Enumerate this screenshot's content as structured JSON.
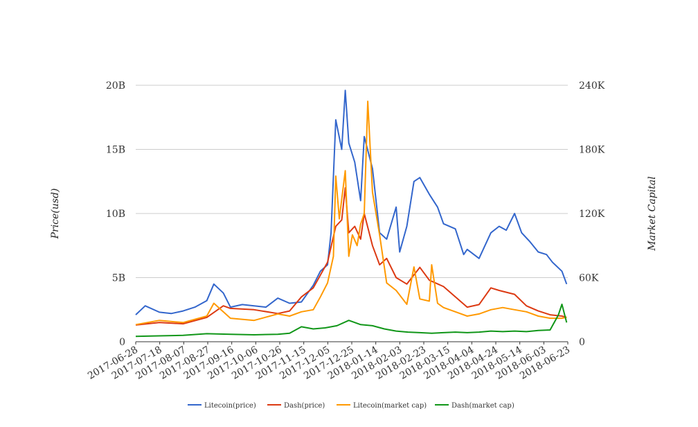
{
  "chart_data": {
    "type": "line",
    "title": "",
    "y_left": {
      "label": "Price(usd)",
      "ticks": [
        "0",
        "5B",
        "10B",
        "15B",
        "20B"
      ],
      "range": [
        0,
        20000000000
      ]
    },
    "y_right": {
      "label": "Market Capital",
      "ticks": [
        "0",
        "60K",
        "120K",
        "180K",
        "240K"
      ],
      "range": [
        0,
        240000
      ]
    },
    "x_ticks": [
      "2017-06-28",
      "2017-07-18",
      "2017-08-07",
      "2017-08-27",
      "2017-09-16",
      "2017-10-06",
      "2017-10-26",
      "2017-11-15",
      "2017-12-05",
      "2017-12-25",
      "2018-01-14",
      "2018-02-03",
      "2018-02-23",
      "2018-03-15",
      "2018-04-04",
      "2018-04-24",
      "2018-05-14",
      "2018-06-03",
      "2018-06-23"
    ],
    "x_range": [
      "2017-06-28",
      "2018-06-28"
    ],
    "grid": true,
    "legend_position": "bottom",
    "series": [
      {
        "name": "Litecoin(price)",
        "color": "#3366cc",
        "axis": "left",
        "x": [
          "2017-06-28",
          "2017-07-06",
          "2017-07-18",
          "2017-07-28",
          "2017-08-07",
          "2017-08-17",
          "2017-08-27",
          "2017-09-02",
          "2017-09-10",
          "2017-09-16",
          "2017-09-26",
          "2017-10-06",
          "2017-10-16",
          "2017-10-26",
          "2017-11-05",
          "2017-11-15",
          "2017-11-25",
          "2017-12-01",
          "2017-12-07",
          "2017-12-10",
          "2017-12-14",
          "2017-12-19",
          "2017-12-22",
          "2017-12-25",
          "2017-12-30",
          "2018-01-04",
          "2018-01-07",
          "2018-01-14",
          "2018-01-20",
          "2018-01-26",
          "2018-02-03",
          "2018-02-06",
          "2018-02-12",
          "2018-02-18",
          "2018-02-23",
          "2018-03-03",
          "2018-03-10",
          "2018-03-15",
          "2018-03-25",
          "2018-04-01",
          "2018-04-04",
          "2018-04-14",
          "2018-04-24",
          "2018-05-01",
          "2018-05-07",
          "2018-05-14",
          "2018-05-20",
          "2018-05-27",
          "2018-06-03",
          "2018-06-10",
          "2018-06-15",
          "2018-06-23",
          "2018-06-27"
        ],
        "values": [
          2100000000,
          2800000000,
          2300000000,
          2200000000,
          2400000000,
          2700000000,
          3200000000,
          4500000000,
          3800000000,
          2700000000,
          2900000000,
          2800000000,
          2700000000,
          3400000000,
          3000000000,
          3100000000,
          4400000000,
          5500000000,
          6000000000,
          8500000000,
          17300000000,
          15000000000,
          19600000000,
          15500000000,
          14000000000,
          11000000000,
          16000000000,
          13500000000,
          8500000000,
          8000000000,
          10500000000,
          7000000000,
          9000000000,
          12500000000,
          12800000000,
          11500000000,
          10500000000,
          9200000000,
          8800000000,
          6800000000,
          7200000000,
          6500000000,
          8500000000,
          9000000000,
          8700000000,
          10000000000,
          8500000000,
          7800000000,
          7000000000,
          6800000000,
          6200000000,
          5500000000,
          4500000000
        ]
      },
      {
        "name": "Dash(price)",
        "color": "#dc3912",
        "axis": "left",
        "x": [
          "2017-06-28",
          "2017-07-18",
          "2017-08-07",
          "2017-08-27",
          "2017-09-10",
          "2017-09-16",
          "2017-10-06",
          "2017-10-26",
          "2017-11-05",
          "2017-11-15",
          "2017-11-25",
          "2017-12-01",
          "2017-12-07",
          "2017-12-14",
          "2017-12-19",
          "2017-12-22",
          "2017-12-25",
          "2017-12-30",
          "2018-01-04",
          "2018-01-07",
          "2018-01-14",
          "2018-01-20",
          "2018-01-26",
          "2018-02-03",
          "2018-02-12",
          "2018-02-23",
          "2018-03-03",
          "2018-03-15",
          "2018-03-25",
          "2018-04-04",
          "2018-04-14",
          "2018-04-24",
          "2018-05-01",
          "2018-05-14",
          "2018-05-24",
          "2018-06-03",
          "2018-06-13",
          "2018-06-23",
          "2018-06-27"
        ],
        "values": [
          1300000000,
          1500000000,
          1400000000,
          1900000000,
          2800000000,
          2600000000,
          2500000000,
          2200000000,
          2400000000,
          3500000000,
          4200000000,
          5200000000,
          6200000000,
          9000000000,
          9500000000,
          12000000000,
          8500000000,
          9000000000,
          8000000000,
          10000000000,
          7500000000,
          6000000000,
          6500000000,
          5000000000,
          4500000000,
          5800000000,
          4800000000,
          4300000000,
          3500000000,
          2700000000,
          2900000000,
          4200000000,
          4000000000,
          3700000000,
          2800000000,
          2400000000,
          2100000000,
          2000000000,
          1900000000
        ]
      },
      {
        "name": "Litecoin(market cap)",
        "color": "#ff9900",
        "axis": "right",
        "x": [
          "2017-06-28",
          "2017-07-18",
          "2017-08-07",
          "2017-08-27",
          "2017-09-02",
          "2017-09-16",
          "2017-10-06",
          "2017-10-26",
          "2017-11-05",
          "2017-11-15",
          "2017-11-25",
          "2017-12-01",
          "2017-12-07",
          "2017-12-12",
          "2017-12-14",
          "2017-12-17",
          "2017-12-22",
          "2017-12-25",
          "2017-12-28",
          "2018-01-01",
          "2018-01-04",
          "2018-01-07",
          "2018-01-10",
          "2018-01-14",
          "2018-01-20",
          "2018-01-26",
          "2018-02-03",
          "2018-02-12",
          "2018-02-18",
          "2018-02-23",
          "2018-03-03",
          "2018-03-05",
          "2018-03-10",
          "2018-03-15",
          "2018-03-25",
          "2018-04-04",
          "2018-04-14",
          "2018-04-24",
          "2018-05-04",
          "2018-05-14",
          "2018-05-24",
          "2018-06-03",
          "2018-06-13",
          "2018-06-23",
          "2018-06-27"
        ],
        "values": [
          16000,
          20000,
          18000,
          24000,
          36000,
          22000,
          20000,
          26000,
          24000,
          28000,
          30000,
          42000,
          55000,
          80000,
          155000,
          115000,
          160000,
          80000,
          100000,
          90000,
          110000,
          120000,
          225000,
          140000,
          100000,
          55000,
          48000,
          35000,
          70000,
          40000,
          38000,
          72000,
          36000,
          32000,
          28000,
          24000,
          26000,
          30000,
          32000,
          30000,
          28000,
          24000,
          22000,
          22000,
          23000
        ]
      },
      {
        "name": "Dash(market cap)",
        "color": "#109618",
        "axis": "right",
        "x": [
          "2017-06-28",
          "2017-07-18",
          "2017-08-07",
          "2017-08-27",
          "2017-09-16",
          "2017-10-06",
          "2017-10-26",
          "2017-11-05",
          "2017-11-15",
          "2017-11-25",
          "2017-12-05",
          "2017-12-15",
          "2017-12-25",
          "2018-01-04",
          "2018-01-14",
          "2018-01-24",
          "2018-02-03",
          "2018-02-13",
          "2018-02-23",
          "2018-03-05",
          "2018-03-15",
          "2018-03-25",
          "2018-04-04",
          "2018-04-14",
          "2018-04-24",
          "2018-05-04",
          "2018-05-14",
          "2018-05-24",
          "2018-06-03",
          "2018-06-13",
          "2018-06-20",
          "2018-06-23",
          "2018-06-27"
        ],
        "values": [
          5000,
          5500,
          6000,
          7500,
          7000,
          6500,
          7000,
          8000,
          14000,
          12000,
          13000,
          15000,
          20000,
          16000,
          15000,
          12000,
          10000,
          9000,
          8500,
          8000,
          8500,
          9000,
          8500,
          9000,
          10000,
          9500,
          10000,
          9500,
          10500,
          11000,
          25000,
          35000,
          18000
        ]
      }
    ]
  }
}
